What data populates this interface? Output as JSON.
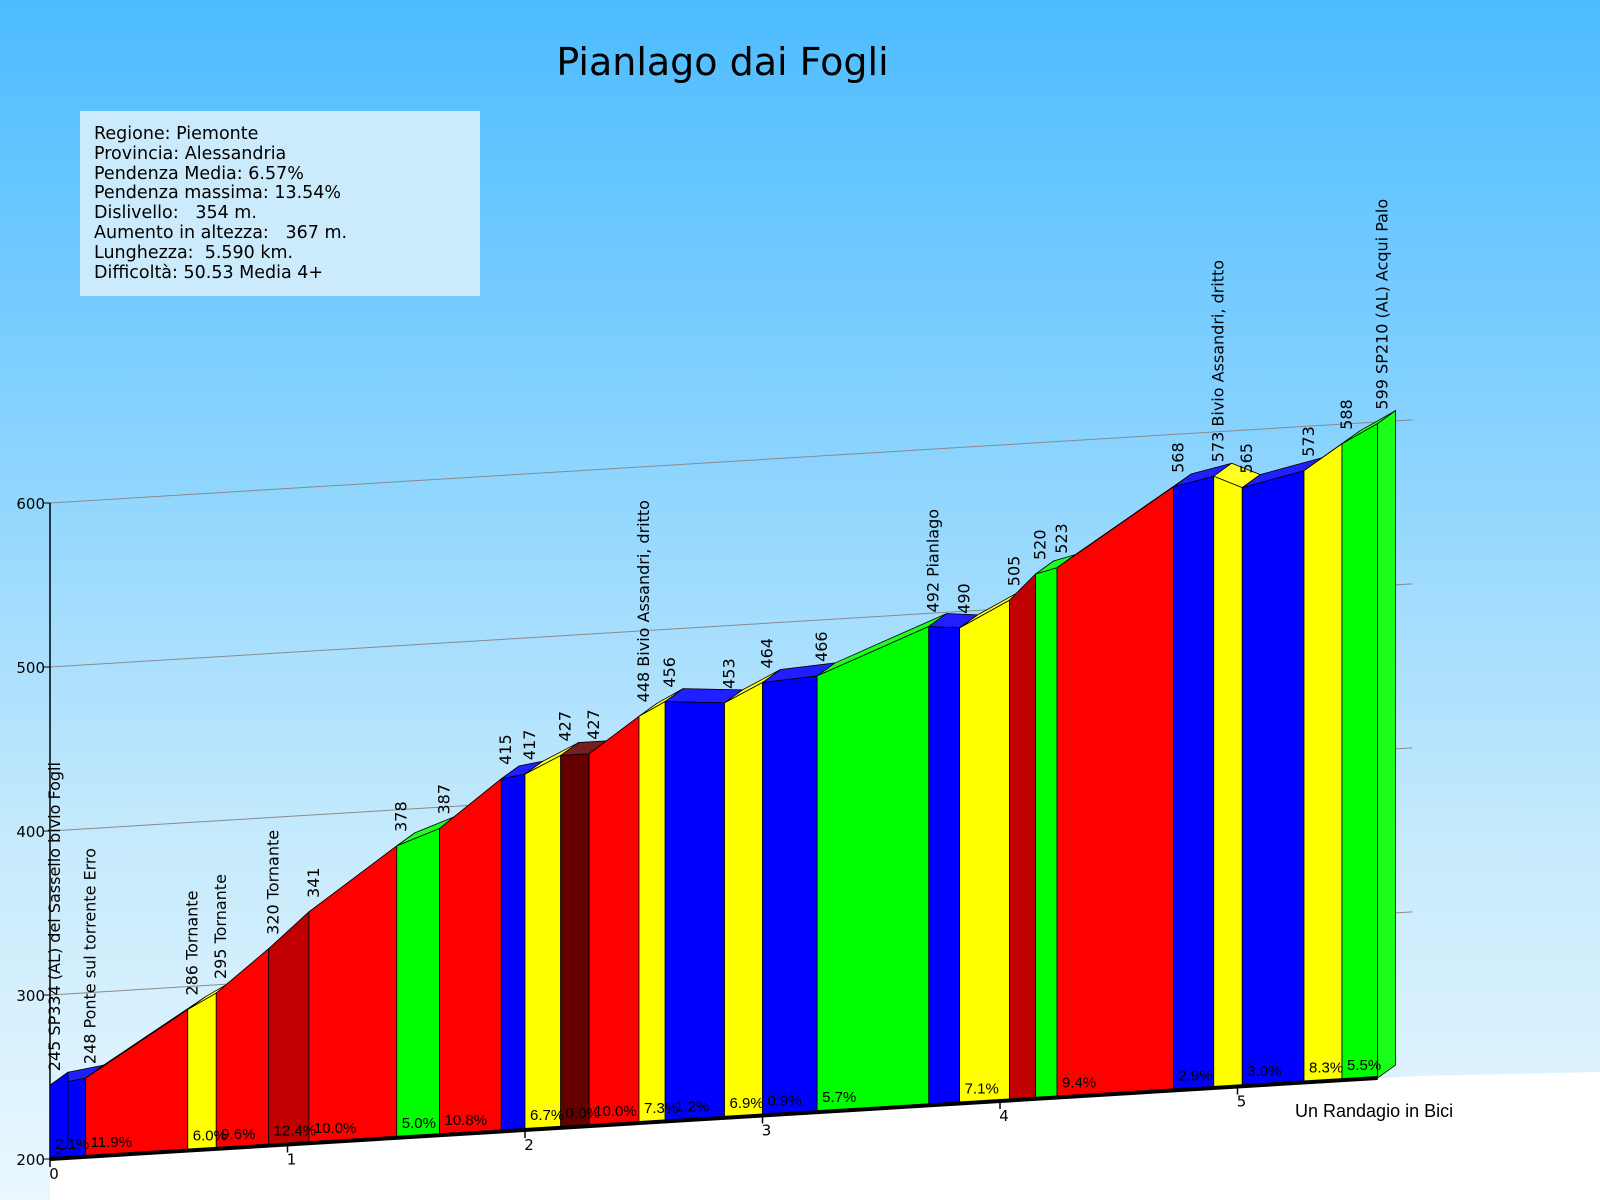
{
  "title": "Pianlago dai Fogli",
  "info": [
    "Regione: Piemonte",
    "Provincia: Alessandria",
    "Pendenza Media: 6.57%",
    "Pendenza massima: 13.54%",
    "Dislivello:   354 m.",
    "Aumento in altezza:   367 m.",
    "Lunghezza:  5.590 km.",
    "Difficoltà: 50.53 Media 4+"
  ],
  "credit": "Un Randagio in Bici",
  "chart_data": {
    "type": "area",
    "title": "Pianlago dai Fogli",
    "xlabel": "",
    "ylabel": "",
    "ylim": [
      200,
      600
    ],
    "y_ticks": [
      200,
      300,
      400,
      500,
      600
    ],
    "x_ticks": [
      0,
      1,
      2,
      3,
      4,
      5
    ],
    "x_unit": "km",
    "grid": true,
    "colors": {
      "blue": "#0000ff",
      "red": "#ff0000",
      "yellow": "#ffff00",
      "green": "#00ff00",
      "darkred": "#c00000",
      "maroon": "#650000"
    },
    "segments": [
      {
        "x0": 0.0,
        "x1": 0.15,
        "color": "blue",
        "grade": "2.1%"
      },
      {
        "x0": 0.15,
        "x1": 0.58,
        "color": "red",
        "grade": "11.9%"
      },
      {
        "x0": 0.58,
        "x1": 0.7,
        "color": "yellow",
        "grade": "6.0%"
      },
      {
        "x0": 0.7,
        "x1": 0.92,
        "color": "red",
        "grade": "9.6%"
      },
      {
        "x0": 0.92,
        "x1": 1.09,
        "color": "darkred",
        "grade": "12.4%"
      },
      {
        "x0": 1.09,
        "x1": 1.46,
        "color": "red",
        "grade": "10.0%"
      },
      {
        "x0": 1.46,
        "x1": 1.64,
        "color": "green",
        "grade": "5.0%"
      },
      {
        "x0": 1.64,
        "x1": 1.9,
        "color": "red",
        "grade": "10.8%"
      },
      {
        "x0": 1.9,
        "x1": 2.0,
        "color": "blue",
        "grade": ""
      },
      {
        "x0": 2.0,
        "x1": 2.15,
        "color": "yellow",
        "grade": "6.7%"
      },
      {
        "x0": 2.15,
        "x1": 2.27,
        "color": "maroon",
        "grade": "0.0%"
      },
      {
        "x0": 2.27,
        "x1": 2.48,
        "color": "red",
        "grade": "10.0%"
      },
      {
        "x0": 2.48,
        "x1": 2.59,
        "color": "yellow",
        "grade": "7.3%"
      },
      {
        "x0": 2.59,
        "x1": 2.84,
        "color": "blue",
        "grade": "-1.2%"
      },
      {
        "x0": 2.84,
        "x1": 3.0,
        "color": "yellow",
        "grade": "6.9%"
      },
      {
        "x0": 3.0,
        "x1": 3.23,
        "color": "blue",
        "grade": "0.9%"
      },
      {
        "x0": 3.23,
        "x1": 3.7,
        "color": "green",
        "grade": "5.7%"
      },
      {
        "x0": 3.7,
        "x1": 3.83,
        "color": "blue",
        "grade": ""
      },
      {
        "x0": 3.83,
        "x1": 4.04,
        "color": "yellow",
        "grade": "7.1%"
      },
      {
        "x0": 4.04,
        "x1": 4.15,
        "color": "darkred",
        "grade": ""
      },
      {
        "x0": 4.15,
        "x1": 4.24,
        "color": "green",
        "grade": ""
      },
      {
        "x0": 4.24,
        "x1": 4.73,
        "color": "red",
        "grade": "9.4%"
      },
      {
        "x0": 4.73,
        "x1": 4.9,
        "color": "blue",
        "grade": "2.9%"
      },
      {
        "x0": 4.9,
        "x1": 5.02,
        "color": "yellow",
        "grade": ""
      },
      {
        "x0": 5.02,
        "x1": 5.28,
        "color": "blue",
        "grade": "3.0%"
      },
      {
        "x0": 5.28,
        "x1": 5.44,
        "color": "yellow",
        "grade": "8.3%"
      },
      {
        "x0": 5.44,
        "x1": 5.59,
        "color": "green",
        "grade": "5.5%"
      }
    ],
    "points": [
      {
        "x": 0.0,
        "y": 245,
        "label": "245 SP334 (AL) del Sassello bivio Fogli"
      },
      {
        "x": 0.15,
        "y": 248,
        "label": "248 Ponte sul torrente Erro"
      },
      {
        "x": 0.58,
        "y": 286,
        "label": "286 Tornante"
      },
      {
        "x": 0.7,
        "y": 295,
        "label": "295 Tornante"
      },
      {
        "x": 0.92,
        "y": 320,
        "label": "320 Tornante"
      },
      {
        "x": 1.09,
        "y": 341,
        "label": "341"
      },
      {
        "x": 1.46,
        "y": 378,
        "label": "378"
      },
      {
        "x": 1.64,
        "y": 387,
        "label": "387"
      },
      {
        "x": 1.9,
        "y": 415,
        "label": "415"
      },
      {
        "x": 2.0,
        "y": 417,
        "label": "417"
      },
      {
        "x": 2.15,
        "y": 427,
        "label": "427"
      },
      {
        "x": 2.27,
        "y": 427,
        "label": "427"
      },
      {
        "x": 2.48,
        "y": 448,
        "label": "448 Bivio Assandri, dritto"
      },
      {
        "x": 2.59,
        "y": 456,
        "label": "456"
      },
      {
        "x": 2.84,
        "y": 453,
        "label": "453"
      },
      {
        "x": 3.0,
        "y": 464,
        "label": "464"
      },
      {
        "x": 3.23,
        "y": 466,
        "label": "466"
      },
      {
        "x": 3.7,
        "y": 492,
        "label": "492 Pianlago"
      },
      {
        "x": 3.83,
        "y": 490,
        "label": "490"
      },
      {
        "x": 4.04,
        "y": 505,
        "label": "505"
      },
      {
        "x": 4.15,
        "y": 520,
        "label": "520"
      },
      {
        "x": 4.24,
        "y": 523,
        "label": "523"
      },
      {
        "x": 4.73,
        "y": 568,
        "label": "568"
      },
      {
        "x": 4.9,
        "y": 573,
        "label": "573 Bivio Assandri, dritto"
      },
      {
        "x": 5.02,
        "y": 565,
        "label": "565"
      },
      {
        "x": 5.28,
        "y": 573,
        "label": "573"
      },
      {
        "x": 5.44,
        "y": 588,
        "label": "588"
      },
      {
        "x": 5.59,
        "y": 599,
        "label": "599 SP210 (AL) Acqui Palo"
      }
    ]
  }
}
